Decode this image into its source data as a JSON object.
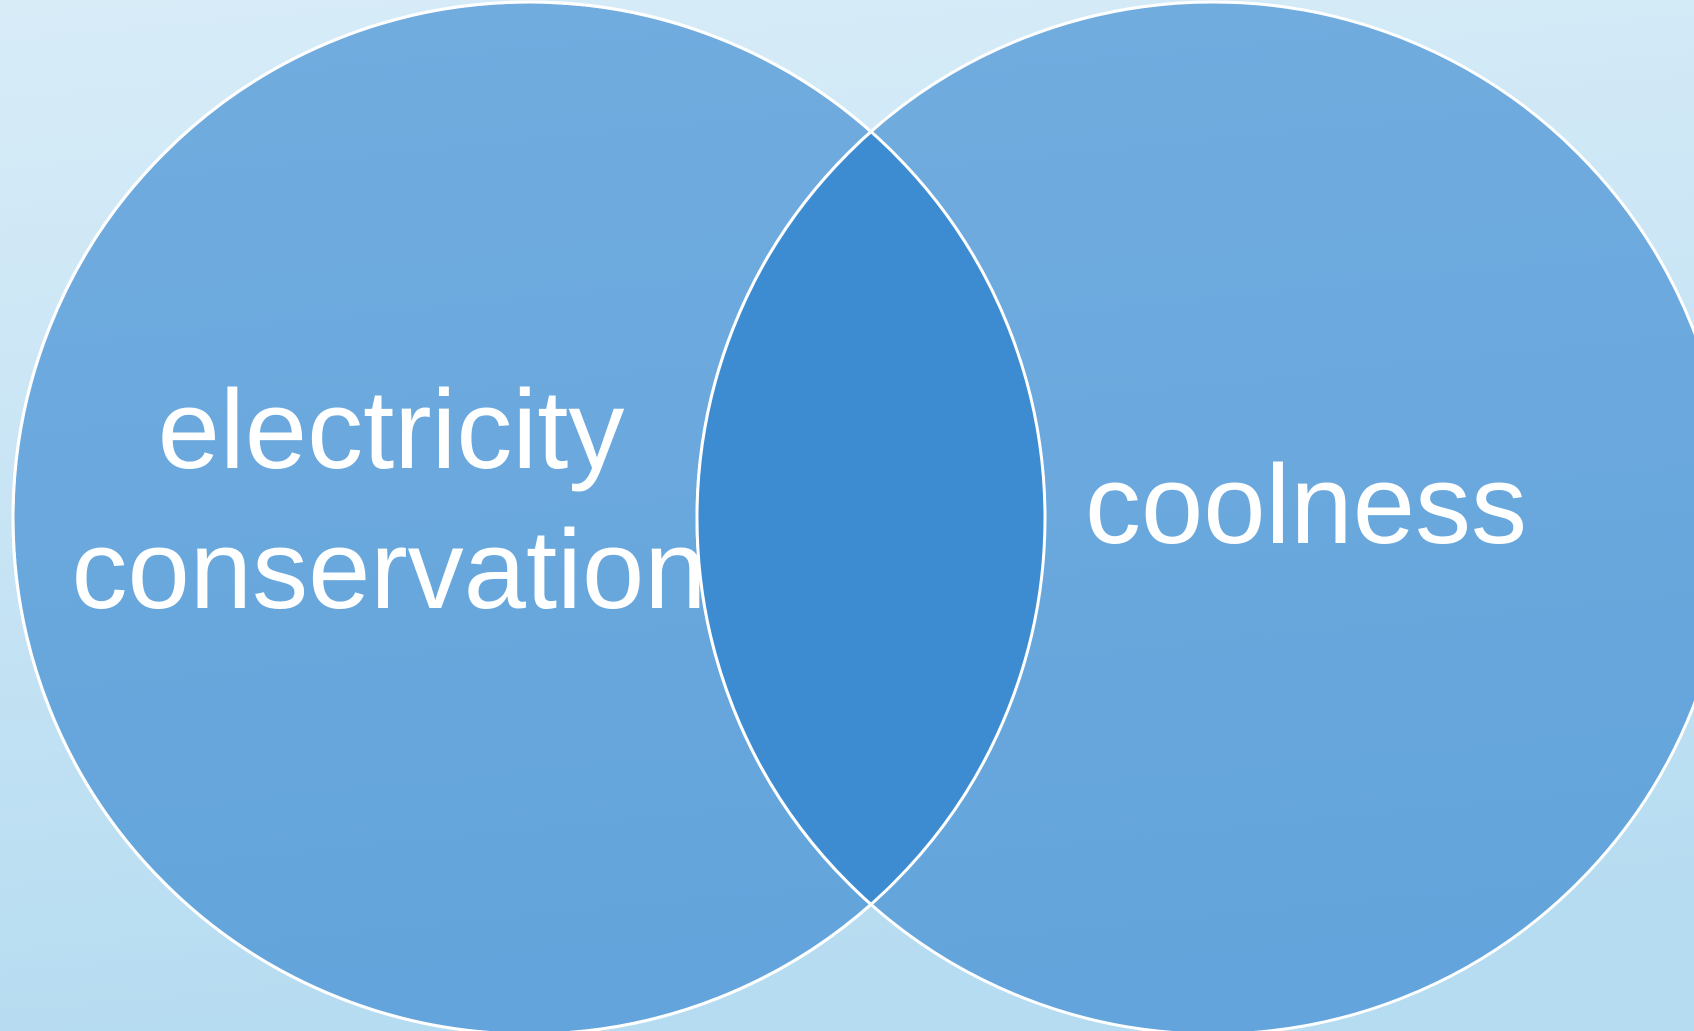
{
  "sets": [
    {
      "lines": [
        "electricity",
        "conservation"
      ]
    },
    {
      "lines": [
        "coolness"
      ]
    }
  ]
}
